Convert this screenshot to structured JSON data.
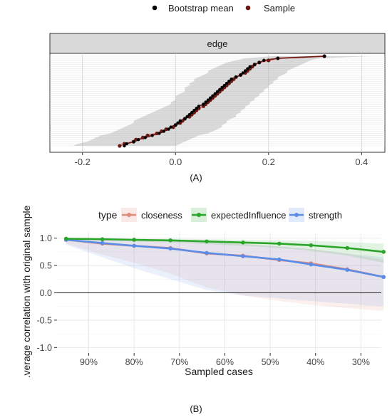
{
  "panel_labels": [
    "(A)",
    "(B)"
  ],
  "chart_data": [
    {
      "type": "line",
      "panel": "(A)",
      "legend": [
        "Bootstrap mean",
        "Sample"
      ],
      "legend_position": "top",
      "facet_title": "edge",
      "xlim": [
        -0.27,
        0.45
      ],
      "x_ticks": [
        -0.2,
        0.0,
        0.2,
        0.4
      ],
      "x_tick_labels": [
        "-0.2",
        "0.0",
        "0.2",
        "0.4"
      ],
      "grid": true,
      "series": [
        {
          "name": "Bootstrap mean",
          "values": [
            -0.11,
            -0.105,
            -0.09,
            -0.08,
            -0.065,
            -0.05,
            -0.035,
            -0.025,
            -0.015,
            -0.01,
            0.0,
            0.005,
            0.01,
            0.02,
            0.025,
            0.03,
            0.035,
            0.04,
            0.045,
            0.05,
            0.06,
            0.065,
            0.07,
            0.075,
            0.08,
            0.085,
            0.09,
            0.095,
            0.1,
            0.105,
            0.11,
            0.115,
            0.12,
            0.13,
            0.14,
            0.145,
            0.15,
            0.155,
            0.16,
            0.17,
            0.18,
            0.19,
            0.22,
            0.32
          ]
        },
        {
          "name": "Sample",
          "values": [
            -0.12,
            -0.11,
            -0.09,
            -0.085,
            -0.07,
            -0.06,
            -0.04,
            -0.03,
            -0.02,
            -0.005,
            0.0,
            0.01,
            0.015,
            0.02,
            0.03,
            0.035,
            0.04,
            0.045,
            0.05,
            0.06,
            0.065,
            0.07,
            0.075,
            0.08,
            0.085,
            0.09,
            0.095,
            0.1,
            0.105,
            0.11,
            0.115,
            0.12,
            0.125,
            0.13,
            0.14,
            0.15,
            0.155,
            0.16,
            0.165,
            0.17,
            0.18,
            0.2,
            0.22,
            0.32
          ]
        }
      ],
      "ci_lower": [
        -0.22,
        -0.21,
        -0.19,
        -0.18,
        -0.17,
        -0.16,
        -0.14,
        -0.13,
        -0.12,
        -0.11,
        -0.1,
        -0.09,
        -0.09,
        -0.08,
        -0.07,
        -0.06,
        -0.05,
        -0.04,
        -0.03,
        -0.02,
        -0.01,
        -0.01,
        0.0,
        0.0,
        0.0,
        0.01,
        0.02,
        0.02,
        0.02,
        0.03,
        0.03,
        0.04,
        0.04,
        0.05,
        0.06,
        0.07,
        0.07,
        0.08,
        0.09,
        0.1,
        0.11,
        0.13,
        0.15,
        0.21
      ],
      "ci_upper": [
        0.0,
        0.01,
        0.02,
        0.03,
        0.04,
        0.05,
        0.07,
        0.08,
        0.09,
        0.1,
        0.1,
        0.11,
        0.11,
        0.12,
        0.13,
        0.13,
        0.14,
        0.14,
        0.15,
        0.15,
        0.16,
        0.16,
        0.17,
        0.17,
        0.18,
        0.18,
        0.19,
        0.19,
        0.2,
        0.2,
        0.21,
        0.21,
        0.22,
        0.22,
        0.23,
        0.24,
        0.24,
        0.25,
        0.26,
        0.27,
        0.28,
        0.29,
        0.31,
        0.42
      ]
    },
    {
      "type": "line",
      "panel": "(B)",
      "legend_title": "type",
      "legend": [
        "closeness",
        "expectedInfluence",
        "strength"
      ],
      "legend_position": "top",
      "colors": {
        "closeness": "#e08a78",
        "expectedInfluence": "#2aa52a",
        "strength": "#5b8de8"
      },
      "xlabel": "Sampled cases",
      "ylabel": "Average correlation with original sample",
      "ylabel_display": ".verage correlation with original sample",
      "x_reversed": true,
      "xlim": [
        0.255,
        0.97
      ],
      "ylim": [
        -1.1,
        1.1
      ],
      "x_ticks": [
        0.9,
        0.8,
        0.7,
        0.6,
        0.5,
        0.4,
        0.3
      ],
      "x_tick_labels": [
        "90%",
        "80%",
        "70%",
        "60%",
        "50%",
        "40%",
        "30%"
      ],
      "y_ticks": [
        -1.0,
        -0.5,
        0.0,
        0.5,
        1.0
      ],
      "y_tick_labels": [
        "-1.0",
        "-0.5",
        "0.0",
        "0.5",
        "1.0"
      ],
      "grid": true,
      "x": [
        0.95,
        0.87,
        0.8,
        0.72,
        0.64,
        0.56,
        0.48,
        0.41,
        0.33,
        0.25
      ],
      "series": [
        {
          "name": "closeness",
          "values": [
            0.97,
            0.9,
            0.86,
            0.82,
            0.72,
            0.68,
            0.6,
            0.54,
            0.43,
            0.29
          ],
          "lower": [
            0.9,
            0.7,
            0.55,
            0.35,
            0.1,
            -0.05,
            -0.15,
            -0.22,
            -0.28,
            -0.33
          ],
          "upper": [
            1.0,
            0.99,
            0.97,
            0.95,
            0.93,
            0.9,
            0.85,
            0.8,
            0.72,
            0.6
          ]
        },
        {
          "name": "expectedInfluence",
          "values": [
            0.99,
            0.98,
            0.97,
            0.96,
            0.94,
            0.92,
            0.9,
            0.87,
            0.82,
            0.75
          ],
          "lower": [
            0.98,
            0.96,
            0.94,
            0.92,
            0.89,
            0.86,
            0.82,
            0.77,
            0.68,
            0.55
          ],
          "upper": [
            1.0,
            1.0,
            0.99,
            0.99,
            0.98,
            0.97,
            0.96,
            0.95,
            0.93,
            0.9
          ]
        },
        {
          "name": "strength",
          "values": [
            0.97,
            0.91,
            0.86,
            0.81,
            0.73,
            0.67,
            0.61,
            0.52,
            0.42,
            0.29
          ],
          "lower": [
            0.88,
            0.65,
            0.45,
            0.25,
            0.05,
            -0.05,
            -0.1,
            -0.15,
            -0.2,
            -0.25
          ],
          "upper": [
            1.0,
            0.99,
            0.97,
            0.95,
            0.92,
            0.89,
            0.85,
            0.8,
            0.72,
            0.65
          ]
        }
      ]
    }
  ]
}
